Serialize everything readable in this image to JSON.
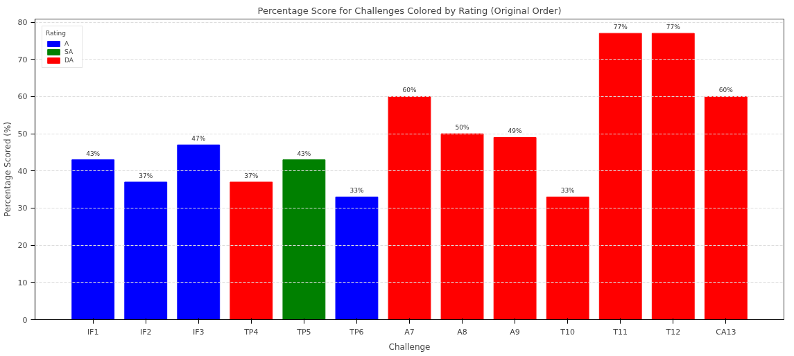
{
  "chart_data": {
    "type": "bar",
    "title": "Percentage Score for Challenges Colored by Rating (Original Order)",
    "xlabel": "Challenge",
    "ylabel": "Percentage Scored (%)",
    "legend_title": "Rating",
    "categories": [
      "IF1",
      "IF2",
      "IF3",
      "TP4",
      "TP5",
      "TP6",
      "A7",
      "A8",
      "A9",
      "T10",
      "T11",
      "T12",
      "CA13"
    ],
    "series": [
      {
        "name": "A",
        "color": "#0000ff",
        "values": [
          43,
          37,
          47,
          null,
          null,
          33,
          null,
          null,
          null,
          null,
          null,
          null,
          null
        ],
        "value_labels": [
          "43%",
          "37%",
          "47%",
          null,
          null,
          "33%",
          null,
          null,
          null,
          null,
          null,
          null,
          null
        ]
      },
      {
        "name": "SA",
        "color": "#008000",
        "values": [
          null,
          null,
          null,
          null,
          43,
          null,
          null,
          null,
          null,
          null,
          null,
          null,
          null
        ],
        "value_labels": [
          null,
          null,
          null,
          null,
          "43%",
          null,
          null,
          null,
          null,
          null,
          null,
          null,
          null
        ]
      },
      {
        "name": "DA",
        "color": "#ff0000",
        "values": [
          null,
          null,
          null,
          37,
          null,
          null,
          60,
          50,
          49,
          33,
          77,
          77,
          60
        ],
        "value_labels": [
          null,
          null,
          null,
          "37%",
          null,
          null,
          "60%",
          "50%",
          "49%",
          "33%",
          "77%",
          "77%",
          "60%"
        ]
      }
    ],
    "ylim": [
      0,
      80.85
    ],
    "yticks": [
      0,
      10,
      20,
      30,
      40,
      50,
      60,
      70,
      80
    ],
    "grid": "y",
    "legend": "top left"
  }
}
